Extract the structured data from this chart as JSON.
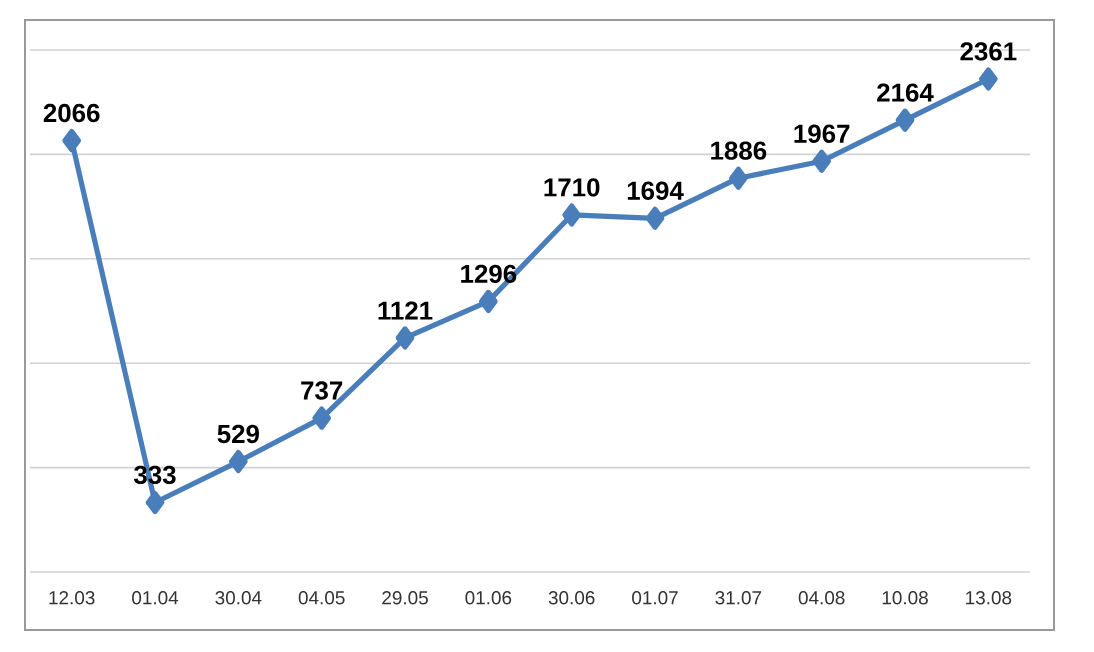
{
  "chart_data": {
    "type": "line",
    "categories": [
      "12.03",
      "01.04",
      "30.04",
      "04.05",
      "29.05",
      "01.06",
      "30.06",
      "01.07",
      "31.07",
      "04.08",
      "10.08",
      "13.08"
    ],
    "values": [
      2066,
      333,
      529,
      737,
      1121,
      1296,
      1710,
      1694,
      1886,
      1967,
      2164,
      2361
    ],
    "color": "#4a7ebb",
    "ylim": [
      0,
      2500
    ],
    "tick_labels": "x",
    "grid": "y",
    "marker": "diamond",
    "data_labels": true
  }
}
